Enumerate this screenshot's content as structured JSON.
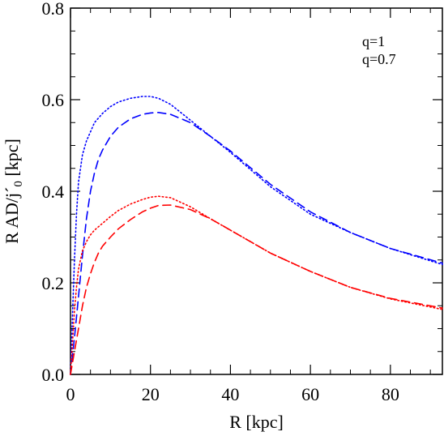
{
  "chart_data": {
    "type": "line",
    "xlabel": "R [kpc]",
    "ylabel": {
      "prefix": "R AD/j",
      "prime": "´",
      "subscript": "0",
      "suffix": " [kpc]"
    },
    "xlim": [
      0,
      93
    ],
    "ylim": [
      0,
      0.8
    ],
    "x_ticks": [
      0,
      20,
      40,
      60,
      80
    ],
    "x_tick_labels": [
      "0",
      "20",
      "40",
      "60",
      "80"
    ],
    "y_ticks": [
      0.0,
      0.2,
      0.4,
      0.6,
      0.8
    ],
    "y_tick_labels": [
      "0.0",
      "0.2",
      "0.4",
      "0.6",
      "0.8"
    ],
    "legend": {
      "placement": "top-right",
      "entries": [
        {
          "label": "q=1",
          "color": "#ff0000"
        },
        {
          "label": "q=0.7",
          "color": "#0000ff"
        }
      ]
    },
    "series": [
      {
        "color": "#0000ff",
        "style": "dotted",
        "x": [
          0,
          0.5,
          1,
          1.5,
          2,
          3,
          4,
          5,
          6,
          8,
          10,
          12,
          15,
          18,
          20,
          22,
          25,
          30,
          35,
          40,
          50,
          60,
          70,
          80,
          93
        ],
        "y": [
          0.0,
          0.13,
          0.25,
          0.35,
          0.42,
          0.48,
          0.51,
          0.53,
          0.55,
          0.57,
          0.585,
          0.595,
          0.603,
          0.607,
          0.607,
          0.603,
          0.59,
          0.555,
          0.52,
          0.485,
          0.41,
          0.35,
          0.31,
          0.275,
          0.24
        ]
      },
      {
        "color": "#0000ff",
        "style": "dashed",
        "x": [
          0,
          1,
          2,
          3,
          4,
          5,
          6,
          7,
          8,
          10,
          12,
          15,
          18,
          20,
          22,
          25,
          30,
          35,
          40,
          50,
          60,
          70,
          80,
          93
        ],
        "y": [
          0.0,
          0.08,
          0.17,
          0.26,
          0.34,
          0.4,
          0.44,
          0.47,
          0.49,
          0.52,
          0.54,
          0.558,
          0.568,
          0.571,
          0.572,
          0.568,
          0.55,
          0.52,
          0.488,
          0.415,
          0.355,
          0.31,
          0.275,
          0.243
        ]
      },
      {
        "color": "#ff0000",
        "style": "dotted",
        "x": [
          0,
          0.5,
          1,
          1.5,
          2,
          3,
          4,
          5,
          6,
          8,
          10,
          12,
          15,
          18,
          20,
          22,
          25,
          30,
          35,
          40,
          50,
          60,
          70,
          80,
          93
        ],
        "y": [
          0.0,
          0.07,
          0.14,
          0.19,
          0.23,
          0.27,
          0.29,
          0.305,
          0.315,
          0.33,
          0.345,
          0.358,
          0.372,
          0.382,
          0.387,
          0.389,
          0.386,
          0.366,
          0.34,
          0.315,
          0.265,
          0.225,
          0.19,
          0.165,
          0.142
        ]
      },
      {
        "color": "#ff0000",
        "style": "dashed",
        "x": [
          0,
          1,
          2,
          3,
          4,
          5,
          6,
          7,
          8,
          10,
          12,
          15,
          18,
          20,
          22,
          25,
          30,
          35,
          40,
          50,
          60,
          70,
          80,
          93
        ],
        "y": [
          0.0,
          0.05,
          0.1,
          0.15,
          0.19,
          0.22,
          0.245,
          0.265,
          0.28,
          0.3,
          0.318,
          0.338,
          0.355,
          0.363,
          0.369,
          0.37,
          0.36,
          0.34,
          0.315,
          0.265,
          0.225,
          0.19,
          0.166,
          0.145
        ]
      }
    ]
  }
}
